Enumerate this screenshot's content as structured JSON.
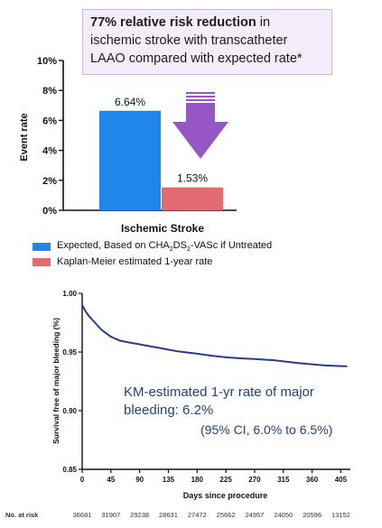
{
  "callout": {
    "bold": "77% relative risk reduction",
    "rest": " in ischemic stroke with transcatheter LAAO compared with expected rate*"
  },
  "chart_data": [
    {
      "type": "bar",
      "ylabel": "Event rate",
      "xlabel": "Ischemic Stroke",
      "ylim": [
        0,
        10
      ],
      "yticks": [
        "0%",
        "2%",
        "4%",
        "6%",
        "8%",
        "10%"
      ],
      "series": [
        {
          "name": "Expected, Based on CHA2DS2-VASc if Untreated",
          "value": 6.64,
          "label": "6.64%",
          "color": "#1f86ec"
        },
        {
          "name": "Kaplan-Meier estimated 1-year rate",
          "value": 1.53,
          "label": "1.53%",
          "color": "#e46a72"
        }
      ],
      "arrow_color": "#9656c4"
    },
    {
      "type": "line",
      "xlabel": "Days since procedure",
      "ylabel": "Survival free of major bleeding (%)",
      "xlim": [
        0,
        420
      ],
      "ylim": [
        0.85,
        1.0
      ],
      "xticks": [
        0,
        45,
        90,
        135,
        180,
        225,
        270,
        315,
        360,
        405
      ],
      "yticks": [
        "0.85",
        "0.90",
        "0.95",
        "1.00"
      ],
      "series": [
        {
          "x": [
            0,
            5,
            10,
            20,
            30,
            45,
            60,
            75,
            90,
            105,
            120,
            135,
            150,
            165,
            180,
            200,
            225,
            250,
            270,
            300,
            315,
            340,
            360,
            380,
            405,
            415
          ],
          "y": [
            0.99,
            0.985,
            0.981,
            0.975,
            0.969,
            0.963,
            0.9595,
            0.958,
            0.9565,
            0.955,
            0.9535,
            0.952,
            0.9505,
            0.9495,
            0.9485,
            0.947,
            0.9455,
            0.9445,
            0.944,
            0.943,
            0.942,
            0.9405,
            0.9395,
            0.9385,
            0.938,
            0.9378
          ],
          "color": "#2b3a8f"
        }
      ],
      "annotation": {
        "line1": "KM-estimated 1-yr rate of major",
        "line2": "bleeding: 6.2%",
        "line3": "(95% CI, 6.0% to 6.5%)"
      },
      "at_risk_label": "No. at risk",
      "at_risk": [
        "36681",
        "31907",
        "29238",
        "28631",
        "27472",
        "25662",
        "24957",
        "24050",
        "20596",
        "13152"
      ]
    }
  ]
}
